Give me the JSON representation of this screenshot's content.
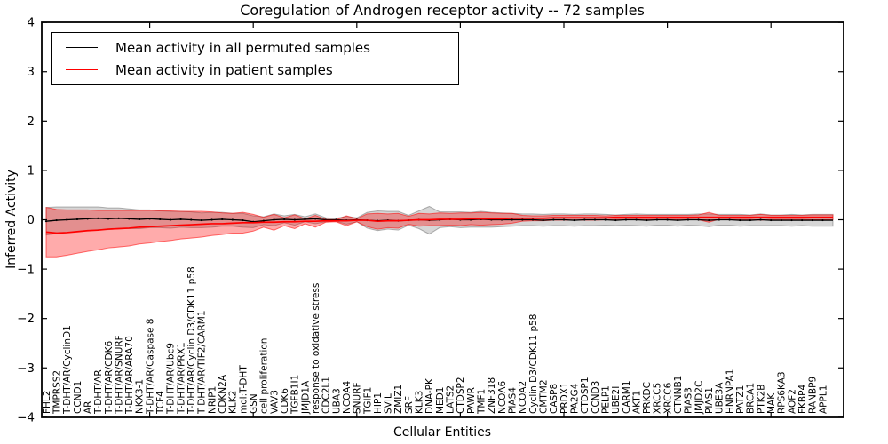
{
  "title": "Coregulation of Androgen receptor activity -- 72 samples",
  "xlabel": "Cellular Entities",
  "ylabel": "Inferred Activity",
  "legend": {
    "items": [
      {
        "label": "Mean activity in all permuted samples",
        "color": "#000000"
      },
      {
        "label": "Mean activity in patient samples",
        "color": "#ff0000"
      }
    ],
    "position": "upper left"
  },
  "colors": {
    "permuted_line": "#000000",
    "patient_line": "#ff0000",
    "permuted_band_fill": "rgba(0,0,0,0.16)",
    "permuted_band_edge": "rgba(0,0,0,0.28)",
    "patient_band_fill": "rgba(255,0,0,0.33)",
    "patient_band_edge": "rgba(255,0,0,0.55)",
    "frame": "#000000",
    "background": "#ffffff"
  },
  "chart_data": {
    "type": "line",
    "title": "Coregulation of Androgen receptor activity -- 72 samples",
    "xlabel": "Cellular Entities",
    "ylabel": "Inferred Activity",
    "ylim": [
      -4,
      4
    ],
    "yticks": [
      4,
      3,
      2,
      1,
      0,
      -1,
      -2,
      -3,
      -4
    ],
    "xtick_indices": [
      10,
      20,
      30,
      40,
      50,
      60,
      70
    ],
    "grid": false,
    "legend_position": "upper left",
    "categories": [
      "FHL2",
      "TMPRSS2",
      "T-DHT/AR/CyclinD1",
      "CCND1",
      "AR",
      "T-DHT/AR",
      "T-DHT/AR/CDK6",
      "T-DHT/AR/SNURF",
      "T-DHT/AR/ARA70",
      "NKX3-1",
      "T-DHT/AR/Caspase 8",
      "TCF4",
      "T-DHT/AR/Ubc9",
      "T-DHT/AR/PRX1",
      "T-DHT/AR/Cyclin D3/CDK11 p58",
      "T-DHT/AR/TIF2/CARM1",
      "NRIP1",
      "CDKN2A",
      "KLK2",
      "mol:T-DHT",
      "GSN",
      "cell proliferation",
      "VAV3",
      "CDK6",
      "TGFB1I1",
      "JMJD1A",
      "response to oxidative stress",
      "CDC2L1",
      "UBA3",
      "NCOA4",
      "SNURF",
      "TGIF1",
      "HIP1",
      "SVIL",
      "ZMIZ1",
      "SRF",
      "KLK3",
      "DNA-PK",
      "MED1",
      "LATS2",
      "CTDSP2",
      "PAWR",
      "TMF1",
      "ZNF318",
      "NCOA6",
      "PIAS4",
      "NCOA2",
      "Cyclin D3/CDK11 p58",
      "CMTM2",
      "CASP8",
      "PRDX1",
      "PA2G4",
      "CTDSP1",
      "CCND3",
      "PELP1",
      "UBE2I",
      "CARM1",
      "AKT1",
      "PRKDC",
      "XRCC5",
      "XRCC6",
      "CTNNB1",
      "PIAS3",
      "JMJD2C",
      "PIAS1",
      "UBE3A",
      "HNRNPA1",
      "PATZ1",
      "BRCA1",
      "PTK2B",
      "MAK",
      "RPS6KA3",
      "AOF2",
      "FKBP4",
      "RANBP9",
      "APPL1"
    ],
    "series": [
      {
        "name": "Mean activity in all permuted samples",
        "color": "#000000",
        "values": [
          -0.03,
          -0.01,
          0.0,
          0.01,
          0.02,
          0.03,
          0.02,
          0.03,
          0.02,
          0.01,
          0.02,
          0.01,
          0.0,
          0.01,
          0.0,
          -0.01,
          0.0,
          0.01,
          0.0,
          -0.01,
          -0.04,
          -0.02,
          0.0,
          0.01,
          0.0,
          0.01,
          0.02,
          0.0,
          0.0,
          -0.01,
          0.0,
          -0.01,
          -0.02,
          -0.01,
          -0.02,
          -0.01,
          0.0,
          -0.01,
          0.0,
          0.01,
          0.0,
          0.0,
          0.01,
          0.0,
          0.0,
          0.0,
          0.0,
          0.0,
          -0.01,
          0.0,
          0.0,
          -0.01,
          0.0,
          0.0,
          0.0,
          -0.01,
          0.0,
          0.0,
          -0.01,
          0.0,
          0.0,
          -0.01,
          0.0,
          0.0,
          -0.01,
          0.0,
          0.0,
          -0.01,
          -0.01,
          0.0,
          -0.01,
          -0.01,
          -0.01,
          -0.01,
          -0.01,
          -0.01
        ],
        "band_halfwidth": [
          0.28,
          0.27,
          0.26,
          0.25,
          0.24,
          0.23,
          0.22,
          0.21,
          0.2,
          0.19,
          0.18,
          0.17,
          0.17,
          0.16,
          0.16,
          0.15,
          0.15,
          0.14,
          0.13,
          0.14,
          0.12,
          0.08,
          0.12,
          0.07,
          0.11,
          0.05,
          0.1,
          0.04,
          0.03,
          0.08,
          0.04,
          0.16,
          0.2,
          0.18,
          0.19,
          0.1,
          0.18,
          0.28,
          0.16,
          0.15,
          0.16,
          0.15,
          0.16,
          0.15,
          0.14,
          0.13,
          0.12,
          0.12,
          0.12,
          0.12,
          0.12,
          0.12,
          0.12,
          0.12,
          0.11,
          0.11,
          0.11,
          0.12,
          0.12,
          0.11,
          0.11,
          0.12,
          0.11,
          0.12,
          0.13,
          0.11,
          0.11,
          0.12,
          0.11,
          0.12,
          0.11,
          0.11,
          0.12,
          0.11,
          0.12,
          0.12
        ]
      },
      {
        "name": "Mean activity in patient samples",
        "color": "#ff0000",
        "values": [
          -0.25,
          -0.27,
          -0.26,
          -0.24,
          -0.22,
          -0.21,
          -0.19,
          -0.18,
          -0.17,
          -0.15,
          -0.14,
          -0.13,
          -0.12,
          -0.11,
          -0.1,
          -0.09,
          -0.08,
          -0.08,
          -0.07,
          -0.06,
          -0.06,
          -0.05,
          -0.05,
          -0.04,
          -0.04,
          -0.03,
          -0.03,
          -0.02,
          -0.02,
          -0.02,
          -0.01,
          -0.01,
          -0.03,
          -0.02,
          -0.02,
          -0.01,
          0.0,
          0.0,
          0.01,
          0.01,
          0.01,
          0.02,
          0.02,
          0.02,
          0.02,
          0.03,
          0.03,
          0.03,
          0.03,
          0.04,
          0.04,
          0.04,
          0.04,
          0.04,
          0.04,
          0.05,
          0.05,
          0.05,
          0.05,
          0.05,
          0.05,
          0.05,
          0.05,
          0.05,
          0.05,
          0.05,
          0.05,
          0.05,
          0.05,
          0.05,
          0.05,
          0.05,
          0.05,
          0.05,
          0.05,
          0.05
        ],
        "band_halfwidth": [
          0.5,
          0.48,
          0.46,
          0.44,
          0.42,
          0.4,
          0.38,
          0.37,
          0.36,
          0.34,
          0.33,
          0.31,
          0.3,
          0.28,
          0.27,
          0.26,
          0.24,
          0.22,
          0.2,
          0.21,
          0.17,
          0.1,
          0.16,
          0.08,
          0.14,
          0.05,
          0.12,
          0.03,
          0.02,
          0.1,
          0.03,
          0.13,
          0.16,
          0.14,
          0.15,
          0.08,
          0.13,
          0.12,
          0.13,
          0.12,
          0.13,
          0.12,
          0.13,
          0.12,
          0.11,
          0.1,
          0.06,
          0.05,
          0.05,
          0.05,
          0.05,
          0.05,
          0.05,
          0.05,
          0.04,
          0.04,
          0.04,
          0.04,
          0.04,
          0.04,
          0.04,
          0.04,
          0.04,
          0.05,
          0.1,
          0.04,
          0.04,
          0.04,
          0.04,
          0.06,
          0.04,
          0.04,
          0.04,
          0.04,
          0.05,
          0.05
        ]
      }
    ]
  }
}
